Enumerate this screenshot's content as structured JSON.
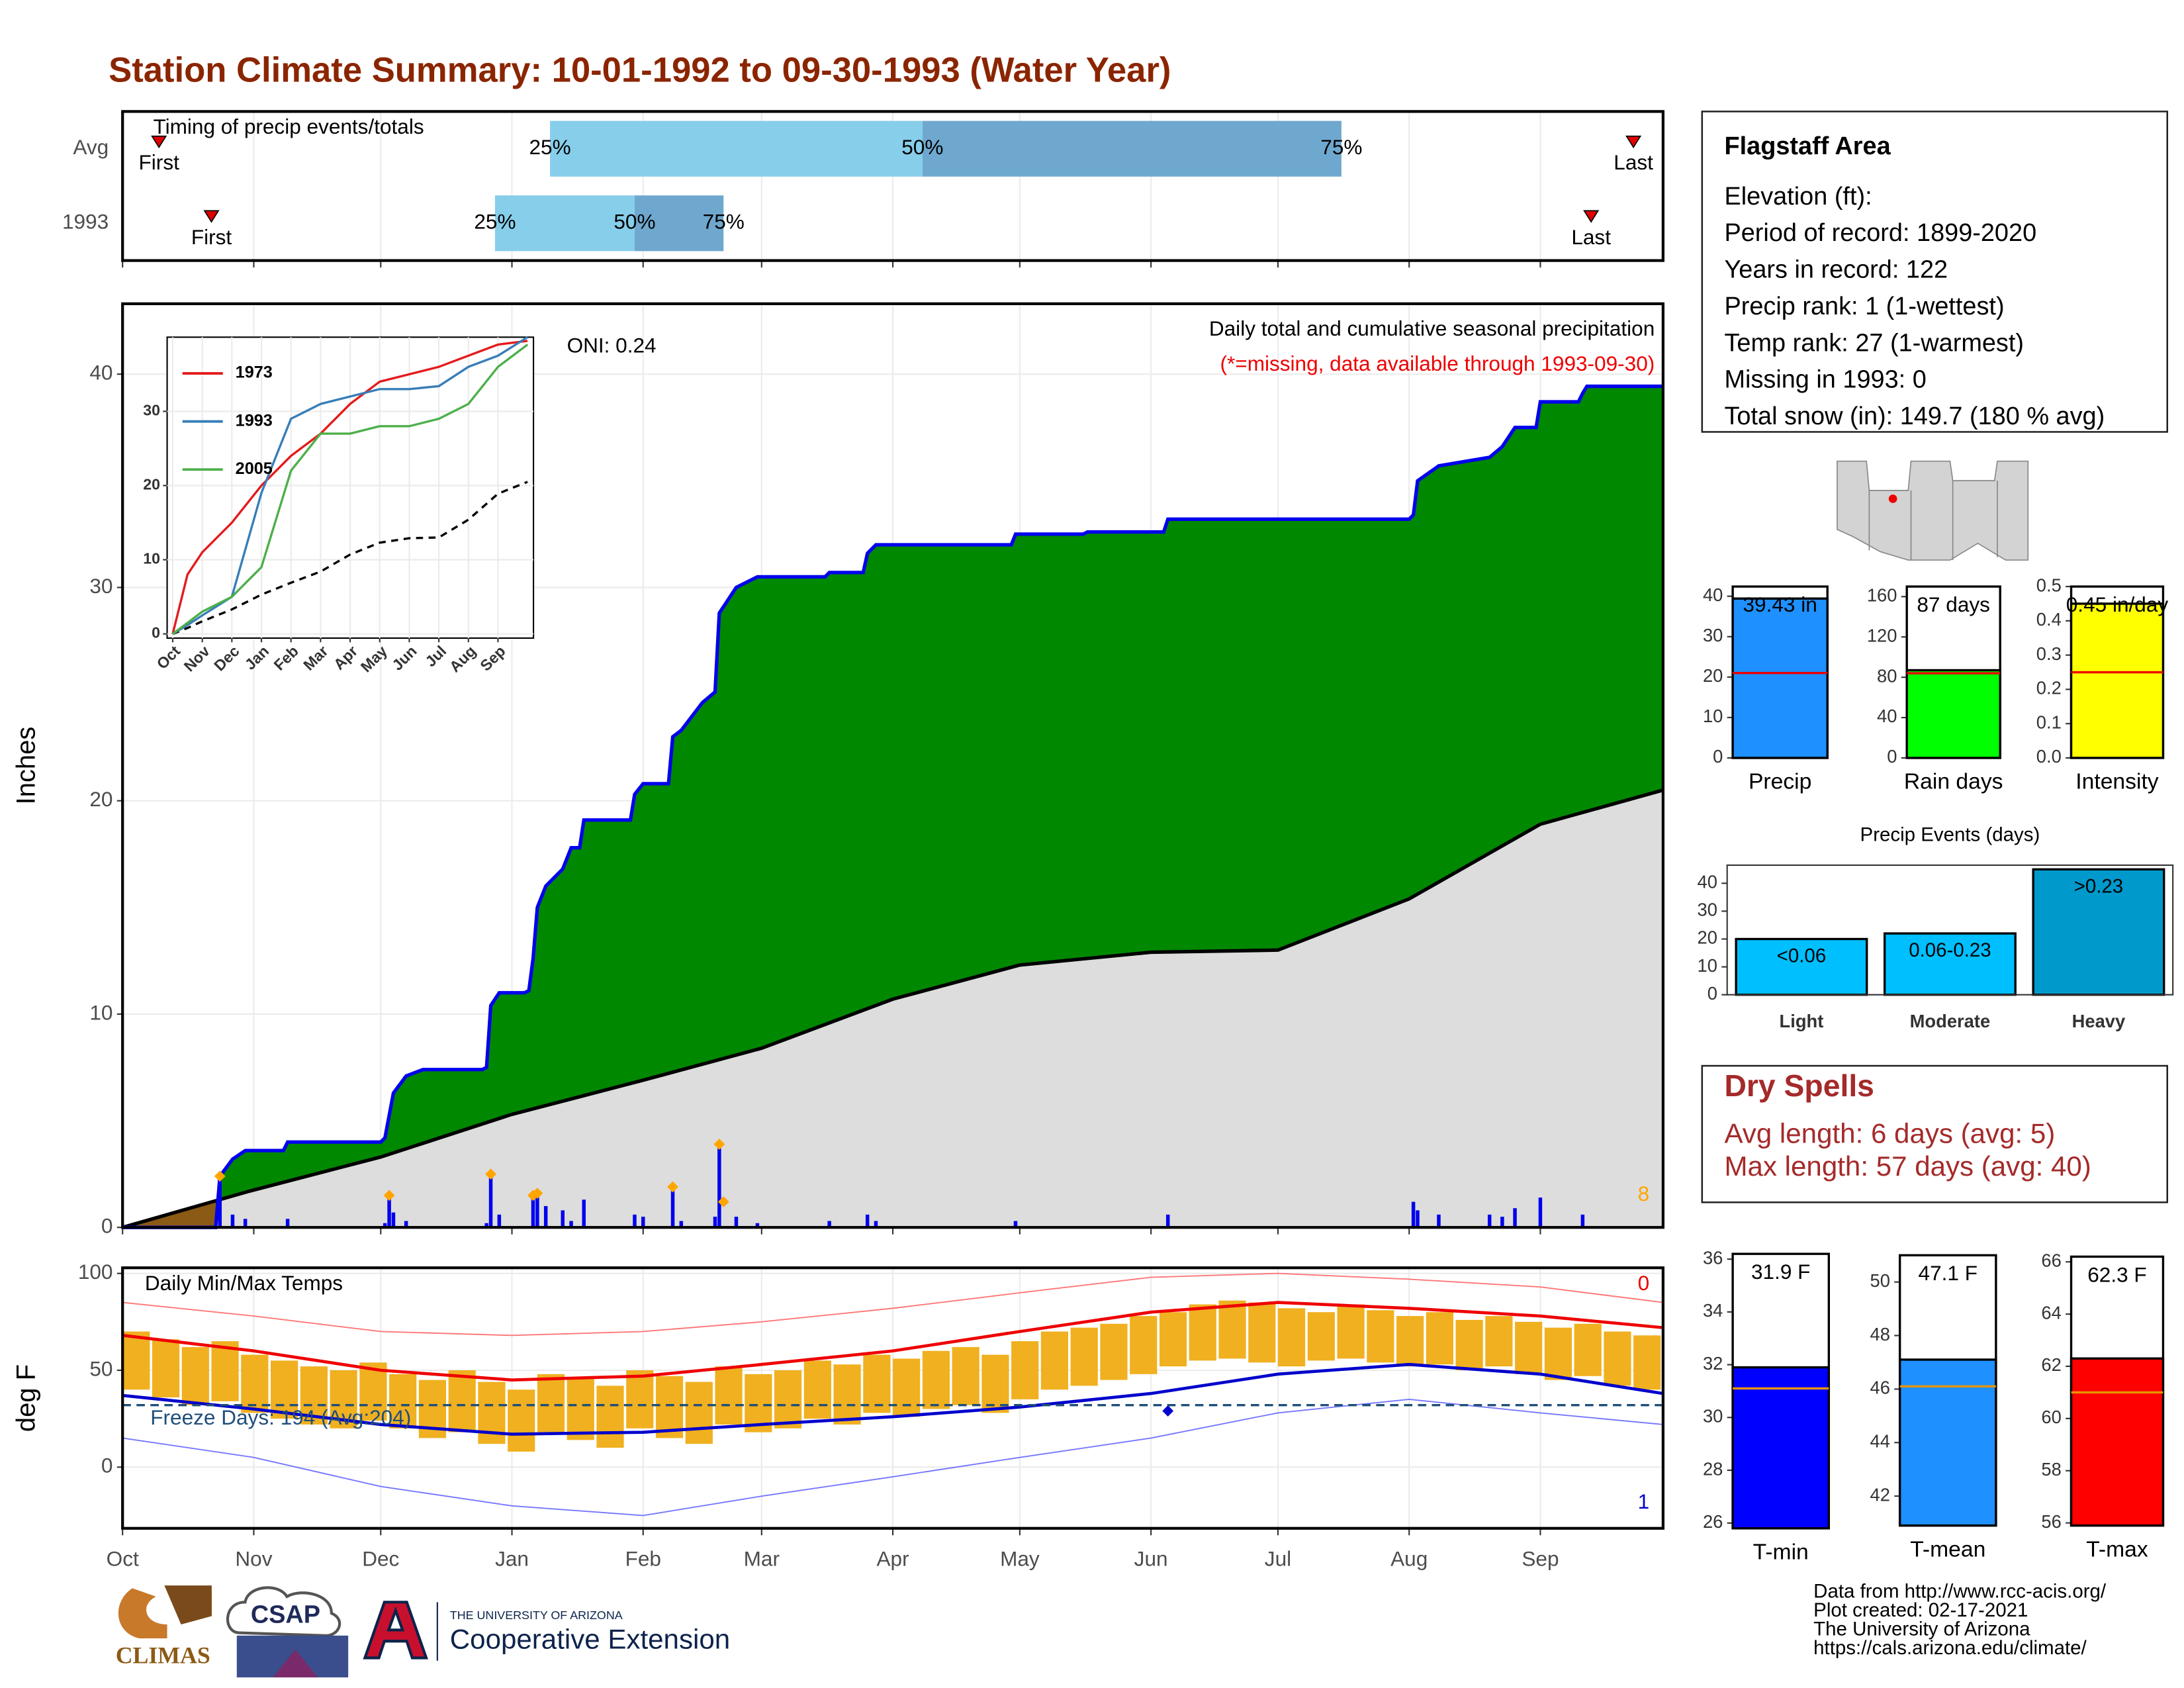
{
  "title": "Station Climate Summary: 10-01-1992 to 09-30-1993 (Water Year)",
  "chart_data": [
    {
      "type": "timing",
      "title": "Timing of precip events/totals",
      "categories": [
        "Avg",
        "1993"
      ],
      "first": [
        8.6,
        21
      ],
      "p25": [
        101,
        88
      ],
      "p50": [
        189,
        121
      ],
      "p75": [
        288,
        142
      ],
      "last": [
        357,
        347
      ],
      "labels": {
        "first": "First",
        "last": "Last",
        "p25": "25%",
        "p50": "50%",
        "p75": "75%"
      },
      "colors": [
        "#87ceeb",
        "#6fa8cf"
      ],
      "marker_color": "#e00000",
      "xlim": [
        0,
        364
      ],
      "xticks": [
        0,
        31,
        61,
        92,
        123,
        151,
        182,
        212,
        243,
        273,
        304,
        335
      ],
      "grid": true
    },
    {
      "type": "step-area",
      "title": "Daily total and cumulative seasonal precipitation",
      "subtitle": "(*=missing, data available through 1993-09-30)",
      "annotation": "ONI: 0.24",
      "count_label": "8",
      "ylabel": "Inches",
      "xlim": [
        0,
        364
      ],
      "xticks": [
        0,
        31,
        61,
        92,
        123,
        151,
        182,
        212,
        243,
        273,
        304,
        335
      ],
      "ylim": [
        0,
        43.3
      ],
      "yticks": [
        0,
        10,
        20,
        30,
        40
      ],
      "grid": true,
      "cumulative": {
        "color": "#008800",
        "line_color": "#0000ee",
        "x": [
          0,
          22,
          23,
          26,
          29,
          38,
          39,
          61,
          62,
          64,
          67,
          71,
          85,
          86,
          87,
          89,
          95,
          96,
          97,
          98,
          100,
          104,
          106,
          108,
          109,
          120,
          121,
          123,
          129,
          130,
          132,
          137,
          140,
          141,
          145,
          150,
          166,
          167,
          175,
          176,
          178,
          210,
          211,
          227,
          228,
          246,
          247,
          304,
          305,
          306,
          311,
          323,
          326,
          329,
          334,
          335,
          344,
          345,
          346,
          364
        ],
        "values": [
          0,
          0,
          2.4,
          3.2,
          3.6,
          3.6,
          4.0,
          4.0,
          4.2,
          6.3,
          7.1,
          7.4,
          7.4,
          7.5,
          10.4,
          11.0,
          11.0,
          11.1,
          12.6,
          15.0,
          16.0,
          16.8,
          17.8,
          17.8,
          19.1,
          19.1,
          20.3,
          20.8,
          20.8,
          23.0,
          23.3,
          24.6,
          25.1,
          28.8,
          30.0,
          30.5,
          30.5,
          30.7,
          30.7,
          31.6,
          32.0,
          32.0,
          32.5,
          32.5,
          32.6,
          32.6,
          33.2,
          33.2,
          33.4,
          35.0,
          35.7,
          36.1,
          36.6,
          37.5,
          37.5,
          38.7,
          38.7,
          39.1,
          39.43,
          39.43
        ]
      },
      "average": {
        "color": "#dddddd",
        "below_color": "#8b5a14",
        "line_color": "#000000",
        "x": [
          0,
          30,
          61,
          92,
          123,
          151,
          182,
          212,
          243,
          273,
          304,
          335,
          364
        ],
        "values": [
          0,
          1.7,
          3.3,
          5.3,
          6.9,
          8.4,
          10.7,
          12.3,
          12.9,
          13.0,
          15.4,
          18.9,
          20.5
        ]
      },
      "daily": {
        "color": "#0000ee",
        "x": [
          23,
          26,
          29,
          39,
          62,
          63,
          64,
          67,
          86,
          87,
          89,
          97,
          98,
          100,
          104,
          106,
          109,
          121,
          123,
          130,
          132,
          140,
          141,
          145,
          150,
          167,
          176,
          178,
          211,
          247,
          305,
          306,
          311,
          323,
          326,
          329,
          335,
          345
        ],
        "values": [
          2.3,
          0.6,
          0.4,
          0.4,
          0.2,
          1.5,
          0.7,
          0.3,
          0.2,
          2.4,
          0.6,
          1.5,
          1.6,
          1.0,
          0.8,
          0.3,
          1.3,
          0.6,
          0.5,
          1.7,
          0.3,
          0.5,
          3.7,
          0.5,
          0.2,
          0.3,
          0.6,
          0.3,
          0.3,
          0.6,
          1.2,
          0.8,
          0.6,
          0.6,
          0.5,
          0.9,
          1.4,
          0.6
        ]
      },
      "records": {
        "color": "#ffa500",
        "x": [
          23,
          63,
          87,
          97,
          98,
          130,
          141,
          142
        ],
        "values": [
          2.4,
          1.5,
          2.5,
          1.5,
          1.6,
          1.9,
          3.9,
          1.2
        ]
      }
    },
    {
      "type": "line",
      "xlim": [
        0,
        12.2
      ],
      "xticks": [
        {
          "value": 0,
          "label": "Oct"
        },
        {
          "value": 1,
          "label": "Nov"
        },
        {
          "value": 2,
          "label": "Dec"
        },
        {
          "value": 3,
          "label": "Jan"
        },
        {
          "value": 4,
          "label": "Feb"
        },
        {
          "value": 5,
          "label": "Mar"
        },
        {
          "value": 6,
          "label": "Apr"
        },
        {
          "value": 7,
          "label": "May"
        },
        {
          "value": 8,
          "label": "Jun"
        },
        {
          "value": 9,
          "label": "Jul"
        },
        {
          "value": 10,
          "label": "Aug"
        },
        {
          "value": 11,
          "label": "Sep"
        }
      ],
      "ylim": [
        0,
        40
      ],
      "yticks": [
        0,
        10,
        20,
        30
      ],
      "grid": true,
      "x": [
        0,
        0.5,
        1,
        2,
        3,
        4,
        5,
        6,
        7,
        8,
        9,
        10,
        11,
        12
      ],
      "series": [
        {
          "name": "1973",
          "color": "#e41a1c",
          "values": [
            0,
            8,
            11,
            15,
            20,
            24,
            27,
            31,
            34,
            35,
            36,
            37.5,
            39,
            39.5
          ]
        },
        {
          "name": "1993",
          "color": "#377eb8",
          "values": [
            0,
            1.2,
            2.5,
            5,
            19,
            29,
            31,
            32,
            33,
            33,
            33.4,
            36,
            37.5,
            40
          ]
        },
        {
          "name": "2005",
          "color": "#4daf4a",
          "values": [
            0,
            1.5,
            3,
            5,
            9,
            22,
            27,
            27,
            28,
            28,
            29,
            31,
            36,
            39
          ]
        }
      ],
      "average": {
        "color": "#000000",
        "values": [
          0,
          0.8,
          1.7,
          3.3,
          5.3,
          6.9,
          8.4,
          10.7,
          12.3,
          12.9,
          13.0,
          15.4,
          18.9,
          20.5
        ]
      }
    },
    {
      "type": "range-bar",
      "title": "Daily Min/Max Temps",
      "ylabel": "deg F",
      "annotation": "Freeze Days: 194 (Avg:204)",
      "record_high_count": "0",
      "record_low_count": "1",
      "xlim": [
        0,
        364
      ],
      "xticks": [
        {
          "value": 0,
          "label": "Oct"
        },
        {
          "value": 31,
          "label": "Nov"
        },
        {
          "value": 61,
          "label": "Dec"
        },
        {
          "value": 92,
          "label": "Jan"
        },
        {
          "value": 123,
          "label": "Feb"
        },
        {
          "value": 151,
          "label": "Mar"
        },
        {
          "value": 182,
          "label": "Apr"
        },
        {
          "value": 212,
          "label": "May"
        },
        {
          "value": 243,
          "label": "Jun"
        },
        {
          "value": 273,
          "label": "Jul"
        },
        {
          "value": 304,
          "label": "Aug"
        },
        {
          "value": 335,
          "label": "Sep"
        }
      ],
      "ylim": [
        -31.6,
        102.9
      ],
      "yticks": [
        0,
        50,
        100
      ],
      "grid": true,
      "color": "#f0b020",
      "x": [
        0,
        7,
        14,
        21,
        28,
        35,
        42,
        49,
        56,
        63,
        70,
        77,
        84,
        91,
        98,
        105,
        112,
        119,
        126,
        133,
        140,
        147,
        154,
        161,
        168,
        175,
        182,
        189,
        196,
        203,
        210,
        217,
        224,
        231,
        238,
        245,
        252,
        259,
        266,
        273,
        280,
        287,
        294,
        301,
        308,
        315,
        322,
        329,
        336,
        343,
        350,
        357
      ],
      "max": [
        70,
        66,
        62,
        65,
        58,
        55,
        52,
        50,
        54,
        48,
        45,
        50,
        44,
        40,
        48,
        46,
        42,
        50,
        47,
        44,
        52,
        48,
        50,
        55,
        53,
        58,
        56,
        60,
        62,
        58,
        65,
        70,
        72,
        74,
        78,
        80,
        84,
        86,
        85,
        82,
        80,
        84,
        81,
        78,
        80,
        76,
        78,
        75,
        72,
        74,
        70,
        68
      ],
      "min": [
        40,
        36,
        32,
        34,
        28,
        25,
        22,
        20,
        24,
        20,
        15,
        18,
        12,
        8,
        18,
        14,
        10,
        20,
        15,
        12,
        22,
        18,
        20,
        25,
        22,
        28,
        26,
        30,
        32,
        28,
        35,
        40,
        42,
        45,
        48,
        52,
        55,
        56,
        54,
        52,
        55,
        56,
        54,
        52,
        53,
        50,
        52,
        48,
        45,
        47,
        42,
        40
      ],
      "monthly_x": [
        0,
        31,
        61,
        92,
        123,
        151,
        182,
        212,
        243,
        273,
        304,
        335,
        364
      ],
      "avg_max": {
        "color": "#ee0000",
        "values": [
          68,
          60,
          50,
          45,
          47,
          53,
          60,
          70,
          80,
          85,
          82,
          78,
          72
        ]
      },
      "avg_min": {
        "color": "#0000cc",
        "values": [
          37,
          30,
          22,
          17,
          18,
          22,
          26,
          31,
          38,
          48,
          53,
          48,
          38
        ]
      },
      "record_max": {
        "color": "#ff7777",
        "values": [
          85,
          78,
          70,
          68,
          70,
          75,
          82,
          90,
          98,
          100,
          97,
          93,
          85
        ]
      },
      "record_min": {
        "color": "#7777ff",
        "values": [
          15,
          5,
          -10,
          -20,
          -25,
          -15,
          -5,
          5,
          15,
          28,
          35,
          28,
          22
        ]
      },
      "freeze": {
        "color": "#1f4e79",
        "value": 32
      },
      "record_low_points": {
        "x": [
          247
        ],
        "values": [
          29
        ]
      }
    },
    {
      "type": "bar",
      "categories": [
        "Precip"
      ],
      "values": [
        39.43
      ],
      "value_labels": [
        "39.43 in"
      ],
      "average": 21,
      "average_color": "#ee0000",
      "color": "#1e90ff",
      "ylim": [
        0,
        42.4
      ],
      "yticks": [
        0,
        10,
        20,
        30,
        40
      ]
    },
    {
      "type": "bar",
      "categories": [
        "Rain days"
      ],
      "values": [
        87
      ],
      "value_labels": [
        "87 days"
      ],
      "average": 84,
      "average_color": "#ee0000",
      "color": "#00ff00",
      "ylim": [
        0,
        170
      ],
      "yticks": [
        0,
        40,
        80,
        120,
        160
      ]
    },
    {
      "type": "bar",
      "categories": [
        "Intensity"
      ],
      "values": [
        0.45
      ],
      "value_labels": [
        "0.45 in/day"
      ],
      "average": 0.25,
      "average_color": "#ee0000",
      "color": "#ffff00",
      "ylim": [
        0,
        0.5
      ],
      "yticks": [
        {
          "value": 0,
          "label": "0.0"
        },
        0.1,
        0.2,
        0.3,
        0.4,
        0.5
      ]
    },
    {
      "type": "bar",
      "title": "Precip Events (days)",
      "categories": [
        "Light",
        "Moderate",
        "Heavy"
      ],
      "values": [
        20,
        22,
        45
      ],
      "bin_labels": [
        "<0.06",
        "0.06-0.23",
        ">0.23"
      ],
      "colors": [
        "#00bfff",
        "#00bfff",
        "#0099cc"
      ],
      "ylim": [
        0,
        46.5
      ],
      "yticks": [
        0,
        10,
        20,
        30,
        40
      ]
    },
    {
      "type": "bar",
      "categories": [
        "T-min"
      ],
      "values": [
        31.9
      ],
      "value_labels": [
        "31.9 F"
      ],
      "average": 31.1,
      "average_color": "#e69500",
      "color": "#0000ff",
      "ylim": [
        25.8,
        36.2
      ],
      "yticks": [
        26,
        28,
        30,
        32,
        34,
        36
      ]
    },
    {
      "type": "bar",
      "categories": [
        "T-mean"
      ],
      "values": [
        47.1
      ],
      "value_labels": [
        "47.1 F"
      ],
      "average": 46.1,
      "average_color": "#e69500",
      "color": "#1e90ff",
      "ylim": [
        40.9,
        51.0
      ],
      "yticks": [
        42,
        44,
        46,
        48,
        50
      ]
    },
    {
      "type": "bar",
      "categories": [
        "T-max"
      ],
      "values": [
        62.3
      ],
      "value_labels": [
        "62.3 F"
      ],
      "average": 61,
      "average_color": "#e69500",
      "color": "#ff0000",
      "ylim": [
        55.9,
        66.2
      ],
      "yticks": [
        56,
        58,
        60,
        62,
        64,
        66
      ]
    }
  ],
  "station_info": {
    "title": "Flagstaff Area",
    "lines": [
      "Elevation (ft):",
      "Period of record: 1899-2020",
      "Years in record: 122",
      "Precip rank: 1 (1-wettest)",
      "Temp rank: 27 (1-warmest)",
      "Missing in 1993: 0",
      "Total snow (in): 149.7 (180 % avg)"
    ]
  },
  "dry_spells": {
    "title": "Dry Spells",
    "lines": [
      "Avg length: 6 days (avg: 5)",
      "Max length: 57 days (avg: 40)"
    ]
  },
  "footer": {
    "lines": [
      "Data from http://www.rcc-acis.org/",
      "Plot created: 02-17-2021",
      "The University of Arizona",
      "https://cals.arizona.edu/climate/"
    ]
  },
  "logos": {
    "climas": "CLIMAS",
    "csap": "CSAP",
    "university": "THE UNIVERSITY OF ARIZONA",
    "extension": "Cooperative Extension"
  }
}
